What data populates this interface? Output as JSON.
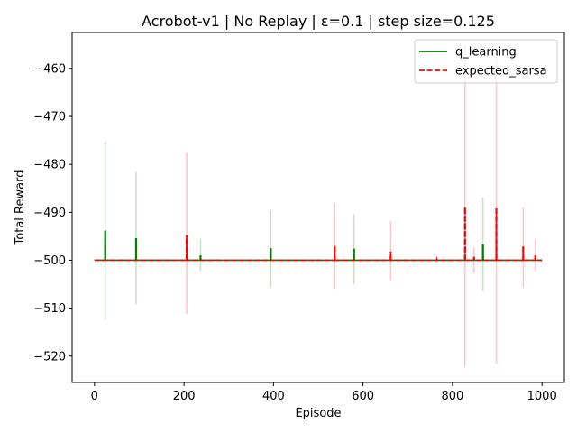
{
  "chart_data": {
    "type": "line",
    "title": "Acrobot-v1 | No Replay | ε=0.1 | step size=0.125",
    "xlabel": "Episode",
    "ylabel": "Total Reward",
    "xlim": [
      -50,
      1050
    ],
    "ylim": [
      -525.5,
      -452.5
    ],
    "xticks": [
      0,
      200,
      400,
      600,
      800,
      1000
    ],
    "yticks": [
      -520,
      -510,
      -500,
      -490,
      -480,
      -470,
      -460
    ],
    "grid": false,
    "legend_position": "top-right",
    "x_range": [
      0,
      1000
    ],
    "baseline": -500,
    "series": [
      {
        "name": "q_learning",
        "color": "#008000",
        "linestyle": "solid",
        "band_color": "#008000",
        "peaks": [
          {
            "x": 24,
            "y": -493.8,
            "low": -512.3,
            "high": -475.3
          },
          {
            "x": 93,
            "y": -495.4,
            "low": -509.2,
            "high": -481.6
          },
          {
            "x": 237,
            "y": -499.0,
            "low": -502.3,
            "high": -495.7
          },
          {
            "x": 394,
            "y": -497.5,
            "low": -505.5,
            "high": -489.6
          },
          {
            "x": 580,
            "y": -497.6,
            "low": -505.0,
            "high": -490.4
          },
          {
            "x": 868,
            "y": -496.7,
            "low": -506.5,
            "high": -486.9
          }
        ]
      },
      {
        "name": "expected_sarsa",
        "color": "#ff0000",
        "linestyle": "dashed",
        "band_color": "#ff0000",
        "peaks": [
          {
            "x": 206,
            "y": -494.8,
            "low": -511.2,
            "high": -477.6
          },
          {
            "x": 537,
            "y": -497.0,
            "low": -506.0,
            "high": -488.2
          },
          {
            "x": 662,
            "y": -498.2,
            "low": -504.2,
            "high": -491.8
          },
          {
            "x": 765,
            "y": -499.8,
            "low": -500.5,
            "high": -499.2
          },
          {
            "x": 828,
            "y": -488.9,
            "low": -522.2,
            "high": -455.3
          },
          {
            "x": 848,
            "y": -499.3,
            "low": -502.7,
            "high": -497.3
          },
          {
            "x": 898,
            "y": -489.2,
            "low": -521.6,
            "high": -457.6
          },
          {
            "x": 958,
            "y": -497.1,
            "low": -505.7,
            "high": -489.0
          },
          {
            "x": 985,
            "y": -499.0,
            "low": -502.3,
            "high": -495.6
          }
        ]
      }
    ]
  }
}
